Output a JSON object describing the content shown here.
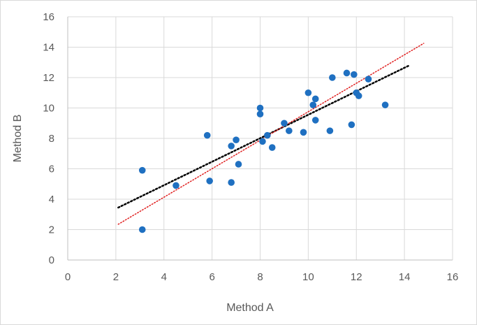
{
  "chart_data": {
    "type": "scatter",
    "xlabel": "Method A",
    "ylabel": "Method B",
    "xlim": [
      0,
      16
    ],
    "ylim": [
      0,
      16
    ],
    "xticks": [
      "0",
      "2",
      "4",
      "6",
      "8",
      "10",
      "12",
      "14",
      "16"
    ],
    "yticks": [
      "0",
      "2",
      "4",
      "6",
      "8",
      "10",
      "12",
      "14",
      "16"
    ],
    "grid": true,
    "points": [
      {
        "x": 3.1,
        "y": 5.9
      },
      {
        "x": 3.1,
        "y": 2.0
      },
      {
        "x": 4.5,
        "y": 4.9
      },
      {
        "x": 5.8,
        "y": 8.2
      },
      {
        "x": 5.9,
        "y": 5.2
      },
      {
        "x": 6.8,
        "y": 7.5
      },
      {
        "x": 6.8,
        "y": 5.1
      },
      {
        "x": 7.0,
        "y": 7.9
      },
      {
        "x": 7.1,
        "y": 6.3
      },
      {
        "x": 8.0,
        "y": 10.0
      },
      {
        "x": 8.0,
        "y": 9.6
      },
      {
        "x": 8.1,
        "y": 7.8
      },
      {
        "x": 8.3,
        "y": 8.2
      },
      {
        "x": 8.5,
        "y": 7.4
      },
      {
        "x": 9.0,
        "y": 9.0
      },
      {
        "x": 9.2,
        "y": 8.5
      },
      {
        "x": 9.8,
        "y": 8.4
      },
      {
        "x": 10.0,
        "y": 11.0
      },
      {
        "x": 10.2,
        "y": 10.2
      },
      {
        "x": 10.3,
        "y": 10.6
      },
      {
        "x": 10.3,
        "y": 9.2
      },
      {
        "x": 10.9,
        "y": 8.5
      },
      {
        "x": 11.0,
        "y": 12.0
      },
      {
        "x": 11.6,
        "y": 12.3
      },
      {
        "x": 11.8,
        "y": 8.9
      },
      {
        "x": 11.9,
        "y": 12.2
      },
      {
        "x": 12.0,
        "y": 11.0
      },
      {
        "x": 12.1,
        "y": 10.8
      },
      {
        "x": 12.5,
        "y": 11.9
      },
      {
        "x": 13.2,
        "y": 10.2
      }
    ],
    "trendlines": [
      {
        "style": "dotted",
        "color": "#000000",
        "x": [
          2.1,
          14.2
        ],
        "y": [
          3.45,
          12.8
        ]
      },
      {
        "style": "dotted",
        "color": "#e02020",
        "x": [
          2.1,
          14.8
        ],
        "y": [
          2.35,
          14.25
        ]
      }
    ],
    "marker_color": "#1f70c1"
  }
}
